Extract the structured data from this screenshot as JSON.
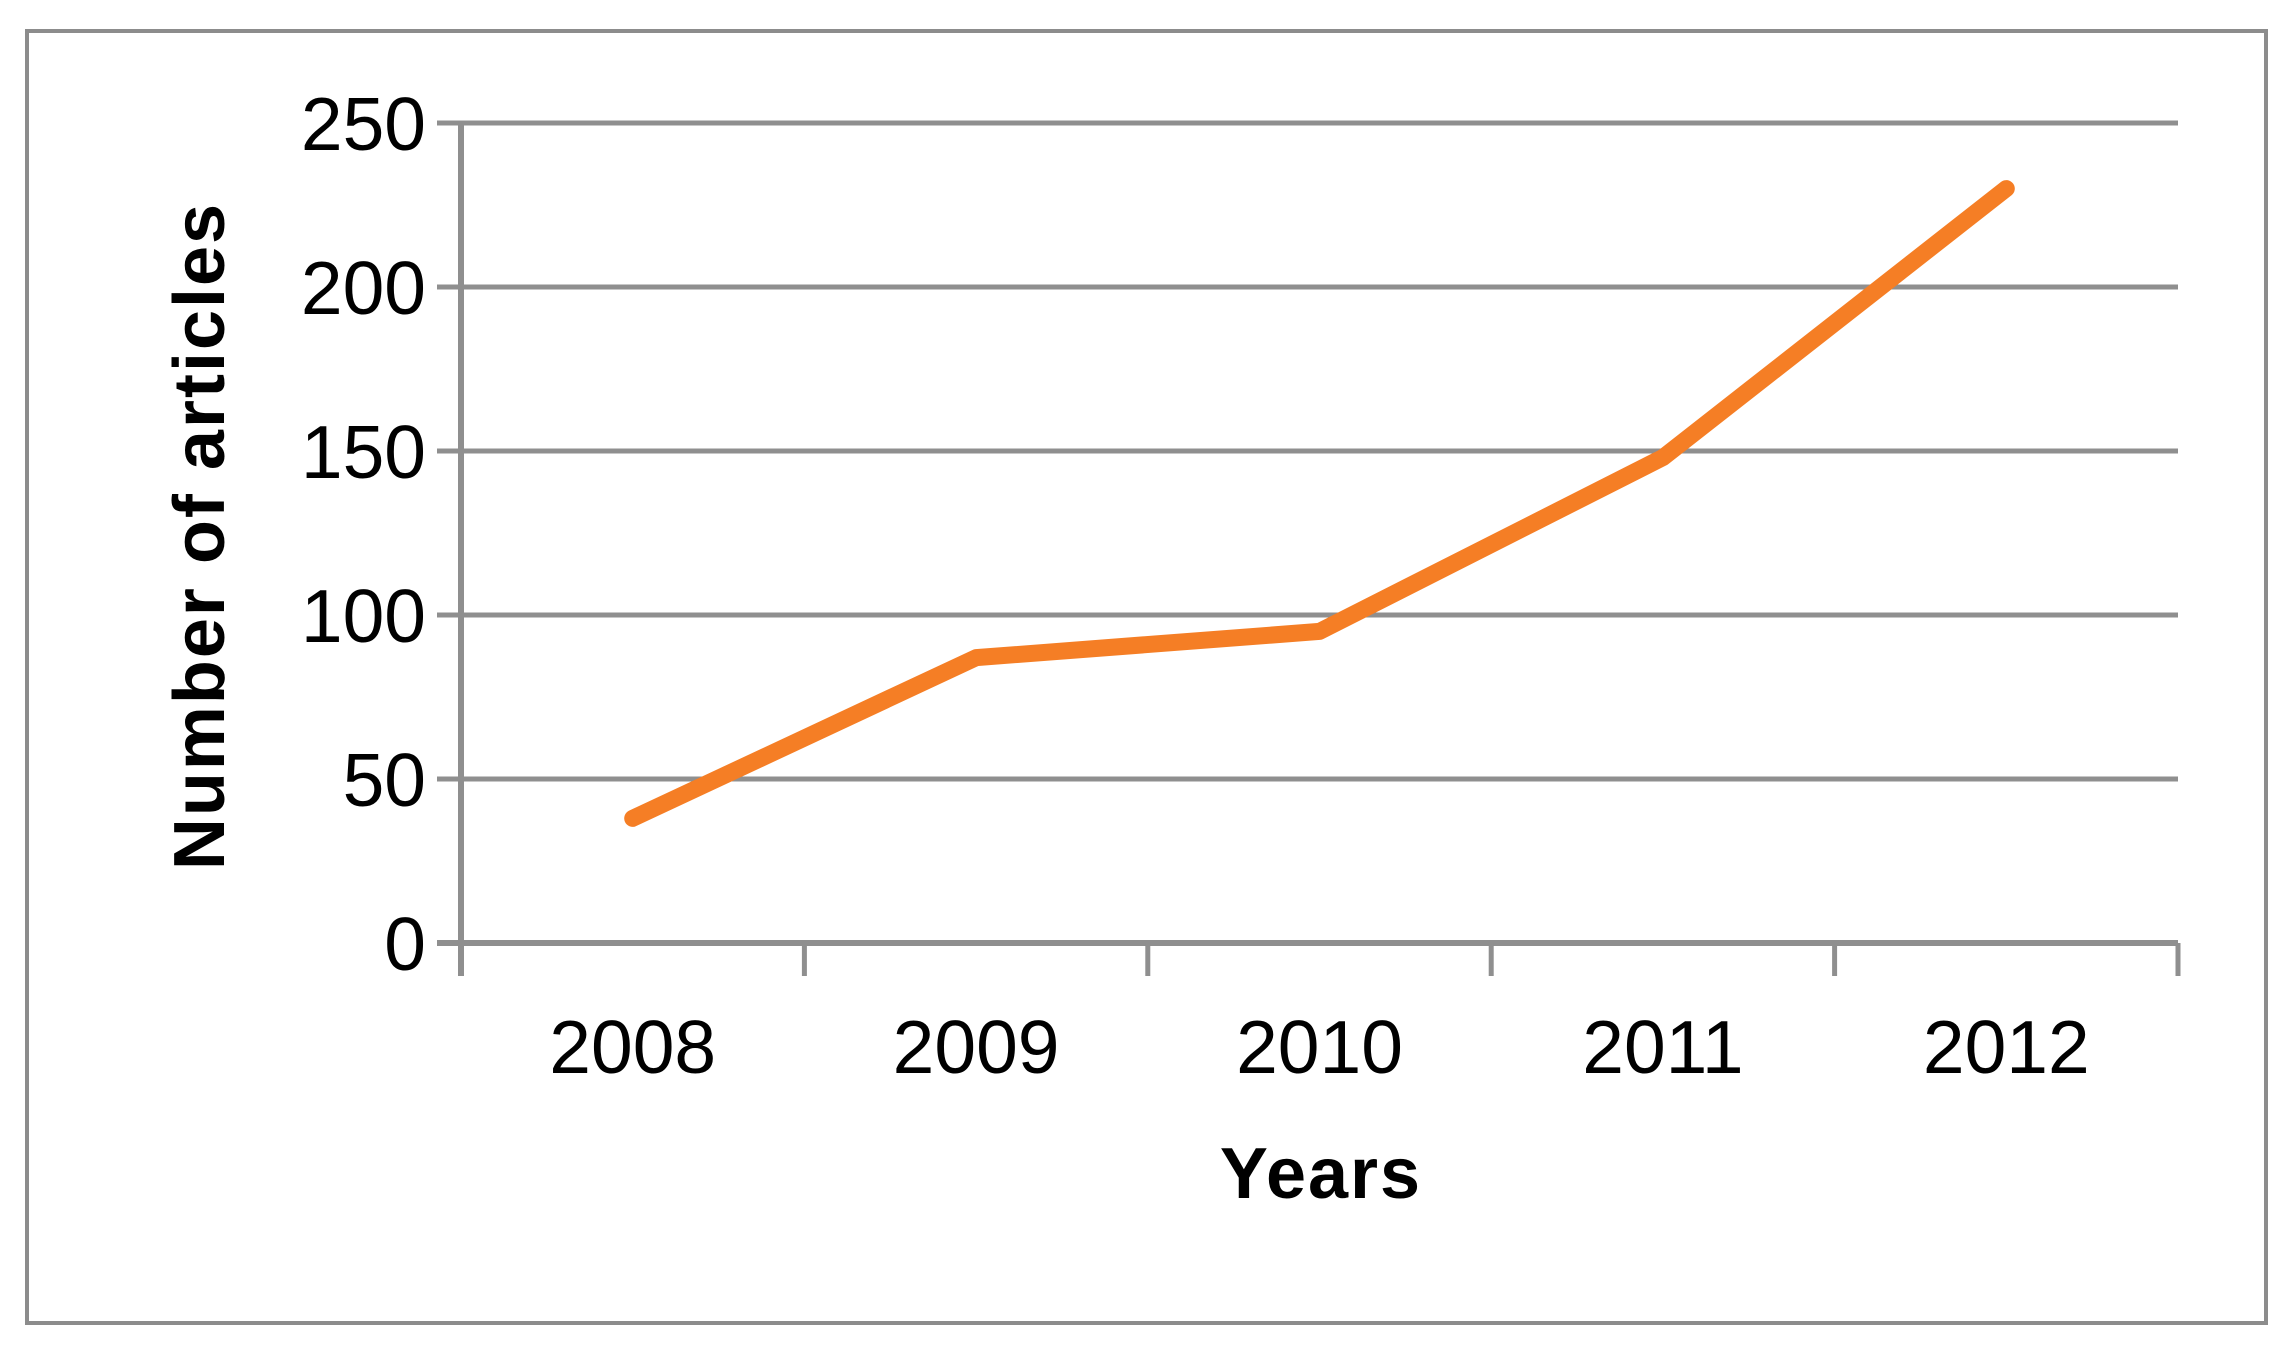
{
  "figure": {
    "background": "#FFFFFF",
    "border_color": "#8C8C8C"
  },
  "chart_data": {
    "type": "line",
    "title": "",
    "categories": [
      "2008",
      "2009",
      "2010",
      "2011",
      "2012"
    ],
    "values": [
      38,
      87,
      95,
      148,
      230
    ],
    "xlabel": "Years",
    "ylabel": "Number of articles",
    "ylim": [
      0,
      250
    ],
    "y_ticks": [
      0,
      50,
      100,
      150,
      200,
      250
    ],
    "grid": true,
    "legend": "none",
    "line_color": "#F57E25",
    "axis_color": "#8F8F8F",
    "tick_label_color": "#000000"
  }
}
